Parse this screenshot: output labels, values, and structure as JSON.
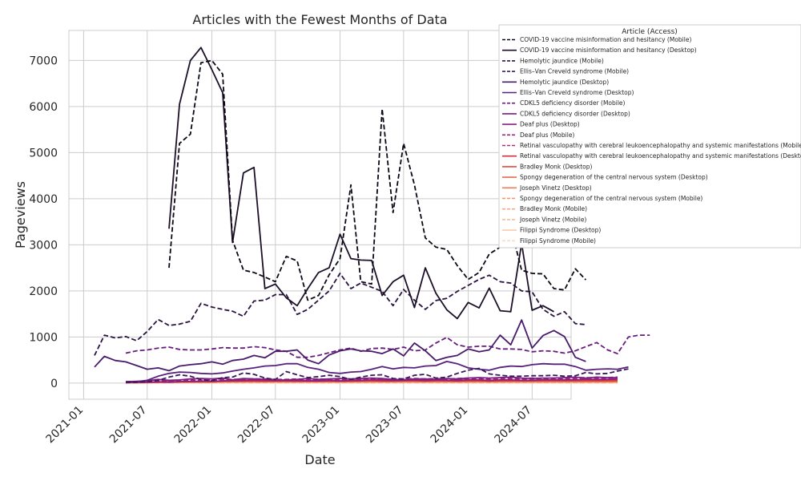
{
  "chart_data": {
    "type": "line",
    "title": "Articles with the Fewest Months of Data",
    "xlabel": "Date",
    "ylabel": "Pageviews",
    "xlim": [
      "2020-11-20",
      "2024-10-20"
    ],
    "ylim": [
      -350,
      7650
    ],
    "x_ticks": [
      "2021-01",
      "2021-07",
      "2022-01",
      "2022-07",
      "2023-01",
      "2023-07",
      "2024-01",
      "2024-07"
    ],
    "y_ticks": [
      0,
      1000,
      2000,
      3000,
      4000,
      5000,
      6000,
      7000
    ],
    "grid": true,
    "legend": {
      "title": "Article (Access)",
      "placement": "top-right"
    },
    "series": [
      {
        "name": "COVID-19 vaccine misinformation and hesitancy (Mobile)",
        "color": "#0d0816",
        "dash": true,
        "start": "2021-09",
        "values": [
          2500,
          5200,
          5400,
          6950,
          7000,
          6700,
          3100,
          2450,
          2400,
          2300,
          2200,
          2750,
          2650,
          1800,
          1900,
          2350,
          2700,
          4300,
          2200,
          2150,
          5950,
          3700,
          5200,
          4300,
          3150,
          2950,
          2900,
          2550,
          2250,
          2400,
          2800,
          2950,
          3380,
          2450,
          2380,
          2370,
          2050,
          2020,
          2480,
          2240
        ]
      },
      {
        "name": "COVID-19 vaccine misinformation and hesitancy (Desktop)",
        "color": "#1c1028",
        "dash": false,
        "start": "2021-09",
        "values": [
          3350,
          6050,
          7000,
          7280,
          6800,
          6300,
          3050,
          4560,
          4680,
          2050,
          2150,
          1850,
          1680,
          2050,
          2400,
          2500,
          3230,
          2700,
          2670,
          2660,
          1900,
          2200,
          2340,
          1640,
          2500,
          1950,
          1590,
          1400,
          1750,
          1630,
          2060,
          1570,
          1550,
          3030,
          1580,
          1680,
          1550
        ]
      },
      {
        "name": "Hemolytic jaundice (Mobile)",
        "color": "#2a1340",
        "dash": true,
        "start": "2021-02",
        "values": [
          600,
          1040,
          980,
          1010,
          920,
          1120,
          1380,
          1250,
          1280,
          1340,
          1730,
          1650,
          1600,
          1560,
          1450,
          1780,
          1800,
          1920,
          1920,
          1490,
          1600,
          1800,
          2000,
          2380,
          2050,
          2170,
          2080,
          1990,
          1680,
          2030,
          1800,
          1600,
          1790,
          1840,
          1990,
          2120,
          2250,
          2340,
          2200,
          2170,
          2000,
          1980,
          1600,
          1450,
          1550,
          1290,
          1270
        ]
      },
      {
        "name": "Ellis–Van Creveld syndrome (Mobile)",
        "color": "#39175a",
        "dash": true,
        "start": "2021-05",
        "values": [
          20,
          20,
          30,
          60,
          130,
          180,
          150,
          80,
          50,
          120,
          130,
          220,
          190,
          110,
          80,
          250,
          180,
          120,
          140,
          170,
          140,
          80,
          130,
          170,
          180,
          100,
          90,
          170,
          190,
          110,
          130,
          210,
          280,
          320,
          200,
          170,
          150,
          150,
          160,
          160,
          170,
          150,
          160,
          230,
          200,
          210,
          260,
          310
        ]
      },
      {
        "name": "Hemolytic jaundice (Desktop)",
        "color": "#481b6b",
        "dash": false,
        "start": "2021-02",
        "values": [
          350,
          580,
          490,
          460,
          380,
          300,
          330,
          270,
          370,
          400,
          420,
          460,
          410,
          490,
          520,
          600,
          550,
          690,
          690,
          720,
          500,
          420,
          610,
          700,
          740,
          700,
          690,
          640,
          740,
          590,
          870,
          700,
          490,
          560,
          600,
          740,
          680,
          720,
          1040,
          830,
          1370,
          760,
          1030,
          1140,
          1010,
          560,
          470
        ]
      },
      {
        "name": "Ellis–Van Creveld syndrome (Desktop)",
        "color": "#58207c",
        "dash": false,
        "start": "2021-05",
        "values": [
          30,
          30,
          60,
          150,
          210,
          240,
          230,
          210,
          200,
          220,
          260,
          300,
          330,
          370,
          380,
          420,
          420,
          340,
          300,
          230,
          210,
          240,
          250,
          300,
          360,
          310,
          340,
          330,
          370,
          380,
          470,
          420,
          330,
          300,
          280,
          340,
          370,
          360,
          400,
          420,
          410,
          410,
          360,
          280,
          300,
          310,
          300,
          350
        ]
      },
      {
        "name": "CDKL5 deficiency disorder (Mobile)",
        "color": "#681d7e",
        "dash": true,
        "start": "2021-02",
        "values": [
          null,
          null,
          null,
          650,
          700,
          720,
          760,
          780,
          730,
          720,
          720,
          740,
          770,
          760,
          760,
          790,
          770,
          720,
          690,
          560,
          560,
          600,
          660,
          720,
          760,
          690,
          750,
          760,
          730,
          780,
          700,
          720,
          870,
          990,
          830,
          780,
          800,
          800,
          740,
          740,
          730,
          680,
          700,
          690,
          650,
          700,
          790,
          880,
          720,
          640,
          1000,
          1040,
          1040
        ]
      },
      {
        "name": "CDKL5 deficiency disorder (Desktop)",
        "color": "#7a1e80",
        "dash": false,
        "start": "2021-05",
        "values": [
          30,
          40,
          50,
          80,
          60,
          70,
          90,
          100,
          90,
          110,
          70,
          100,
          90,
          80,
          60,
          70,
          80,
          100,
          80,
          90,
          100,
          90,
          100,
          110,
          100,
          80,
          70,
          90,
          90,
          80,
          100,
          90,
          110,
          120,
          110,
          120,
          130,
          110,
          100,
          110,
          110,
          120,
          130,
          110,
          130,
          120,
          120
        ]
      },
      {
        "name": "Deaf plus (Desktop)",
        "color": "#8c2081",
        "dash": false,
        "start": "2021-05",
        "values": [
          10,
          20,
          20,
          30,
          20,
          30,
          40,
          40,
          40,
          50,
          60,
          60,
          70,
          70,
          60,
          60,
          60,
          50,
          50,
          60,
          50,
          60,
          60,
          70,
          70,
          60,
          60,
          70,
          60,
          70,
          60,
          60,
          70,
          70,
          60,
          70,
          70,
          60,
          60,
          70,
          70,
          70,
          70,
          80,
          80,
          80,
          90
        ]
      },
      {
        "name": "Deaf plus (Mobile)",
        "color": "#9d2580",
        "dash": true,
        "start": "2021-05",
        "values": [
          20,
          30,
          30,
          40,
          50,
          60,
          60,
          60,
          70,
          80,
          80,
          90,
          90,
          90,
          80,
          80,
          90,
          80,
          90,
          80,
          90,
          80,
          80,
          90,
          90,
          80,
          90,
          100,
          90,
          100,
          90,
          100,
          110,
          100,
          100,
          110,
          110,
          100,
          110,
          100,
          110,
          100,
          110,
          120,
          110,
          120,
          130
        ]
      },
      {
        "name": "Retinal vasculopathy with cerebral leukoencephalopathy and systemic manifestations (Mobile)",
        "color": "#b32a7a",
        "dash": true,
        "start": "2021-05",
        "values": [
          20,
          20,
          30,
          30,
          40,
          40,
          50,
          60,
          60,
          60,
          70,
          70,
          60,
          60,
          70,
          70,
          60,
          70,
          70,
          70,
          60,
          70,
          80,
          80,
          70,
          70,
          80,
          80,
          70,
          80,
          80,
          70,
          80,
          80,
          70,
          80,
          80,
          80,
          80,
          90,
          90,
          80,
          90,
          90,
          80,
          90,
          90
        ]
      },
      {
        "name": "Retinal vasculopathy with cerebral leukoencephalopathy and systemic manifestations (Desktop)",
        "color": "#d3323c",
        "dash": false,
        "start": "2021-05",
        "values": [
          10,
          20,
          20,
          20,
          30,
          30,
          30,
          40,
          40,
          40,
          40,
          50,
          50,
          40,
          50,
          50,
          40,
          50,
          50,
          50,
          40,
          50,
          50,
          60,
          50,
          50,
          60,
          60,
          50,
          60,
          60,
          50,
          60,
          60,
          50,
          60,
          60,
          60,
          60,
          70,
          70,
          60,
          70,
          70,
          60,
          70,
          70
        ]
      },
      {
        "name": "Bradley Monk (Desktop)",
        "color": "#e04b3b",
        "dash": false,
        "start": "2021-05",
        "values": [
          10,
          10,
          20,
          20,
          20,
          30,
          30,
          30,
          30,
          40,
          40,
          40,
          40,
          40,
          40,
          40,
          40,
          40,
          40,
          40,
          40,
          40,
          50,
          50,
          40,
          40,
          50,
          50,
          40,
          50,
          50,
          40,
          50,
          50,
          40,
          50,
          50,
          50,
          50,
          50,
          50,
          50,
          50,
          50,
          50,
          50,
          50
        ]
      },
      {
        "name": "Spongy degeneration of the central nervous system (Desktop)",
        "color": "#ea6a4f",
        "dash": false,
        "start": "2021-05",
        "values": [
          10,
          20,
          20,
          20,
          30,
          30,
          30,
          30,
          40,
          40,
          40,
          40,
          40,
          40,
          40,
          40,
          40,
          40,
          40,
          40,
          40,
          40,
          40,
          40,
          40,
          40,
          40,
          40,
          40,
          40,
          40,
          40,
          40,
          40,
          40,
          40,
          40,
          40,
          40,
          40,
          40,
          40,
          40,
          40,
          40,
          40,
          40
        ]
      },
      {
        "name": "Joseph Vinetz (Desktop)",
        "color": "#ee7d56",
        "dash": false,
        "start": "2021-05",
        "values": [
          10,
          10,
          10,
          20,
          20,
          20,
          20,
          20,
          20,
          30,
          30,
          30,
          30,
          30,
          30,
          30,
          30,
          30,
          30,
          30,
          30,
          30,
          30,
          30,
          30,
          30,
          30,
          30,
          30,
          30,
          30,
          30,
          30,
          30,
          30,
          30,
          30,
          30,
          30,
          30,
          30,
          30,
          30,
          30,
          30,
          30,
          30
        ]
      },
      {
        "name": "Spongy degeneration of the central nervous system (Mobile)",
        "color": "#f29466",
        "dash": true,
        "start": "2021-05",
        "values": [
          20,
          20,
          30,
          30,
          30,
          40,
          40,
          40,
          40,
          50,
          50,
          50,
          50,
          50,
          50,
          50,
          50,
          50,
          50,
          50,
          50,
          50,
          50,
          50,
          50,
          50,
          50,
          50,
          50,
          50,
          50,
          50,
          50,
          50,
          50,
          50,
          50,
          50,
          50,
          50,
          50,
          50,
          50,
          50,
          50,
          50,
          50
        ]
      },
      {
        "name": "Bradley Monk (Mobile)",
        "color": "#f4aa82",
        "dash": true,
        "start": "2021-05",
        "values": [
          10,
          10,
          10,
          10,
          10,
          20,
          20,
          20,
          20,
          20,
          20,
          20,
          20,
          20,
          20,
          20,
          20,
          20,
          20,
          20,
          20,
          20,
          20,
          20,
          20,
          20,
          20,
          20,
          20,
          20,
          20,
          20,
          20,
          20,
          20,
          20,
          20,
          20,
          20,
          20,
          20,
          20,
          20,
          20,
          20,
          20,
          20
        ]
      },
      {
        "name": "Joseph Vinetz (Mobile)",
        "color": "#f6bc98",
        "dash": true,
        "start": "2021-05",
        "values": [
          10,
          10,
          10,
          10,
          10,
          10,
          10,
          10,
          10,
          10,
          10,
          10,
          10,
          10,
          10,
          10,
          10,
          10,
          10,
          10,
          10,
          10,
          10,
          10,
          10,
          10,
          10,
          10,
          10,
          10,
          10,
          10,
          10,
          10,
          10,
          10,
          10,
          10,
          10,
          10,
          10,
          10,
          10,
          10,
          10,
          10,
          10
        ]
      },
      {
        "name": "Filippi Syndrome (Desktop)",
        "color": "#f8ccad",
        "dash": false,
        "start": "2021-05",
        "values": [
          5,
          5,
          5,
          5,
          5,
          5,
          5,
          5,
          5,
          5,
          5,
          5,
          5,
          5,
          5,
          5,
          5,
          5,
          5,
          5,
          5,
          5,
          5,
          5,
          5,
          5,
          5,
          5,
          5,
          5,
          5,
          5,
          5,
          5,
          5,
          5,
          5,
          5,
          5,
          5,
          5,
          5,
          5,
          5,
          5,
          5,
          5
        ]
      },
      {
        "name": "Filippi Syndrome (Mobile)",
        "color": "#fadcc4",
        "dash": true,
        "start": "2021-05",
        "values": [
          5,
          5,
          5,
          5,
          5,
          5,
          5,
          5,
          5,
          5,
          5,
          5,
          5,
          5,
          5,
          5,
          5,
          5,
          5,
          5,
          5,
          5,
          5,
          5,
          5,
          5,
          5,
          5,
          5,
          5,
          5,
          5,
          5,
          5,
          5,
          5,
          5,
          5,
          5,
          5,
          5,
          5,
          5,
          5,
          5,
          5,
          5
        ]
      }
    ]
  }
}
